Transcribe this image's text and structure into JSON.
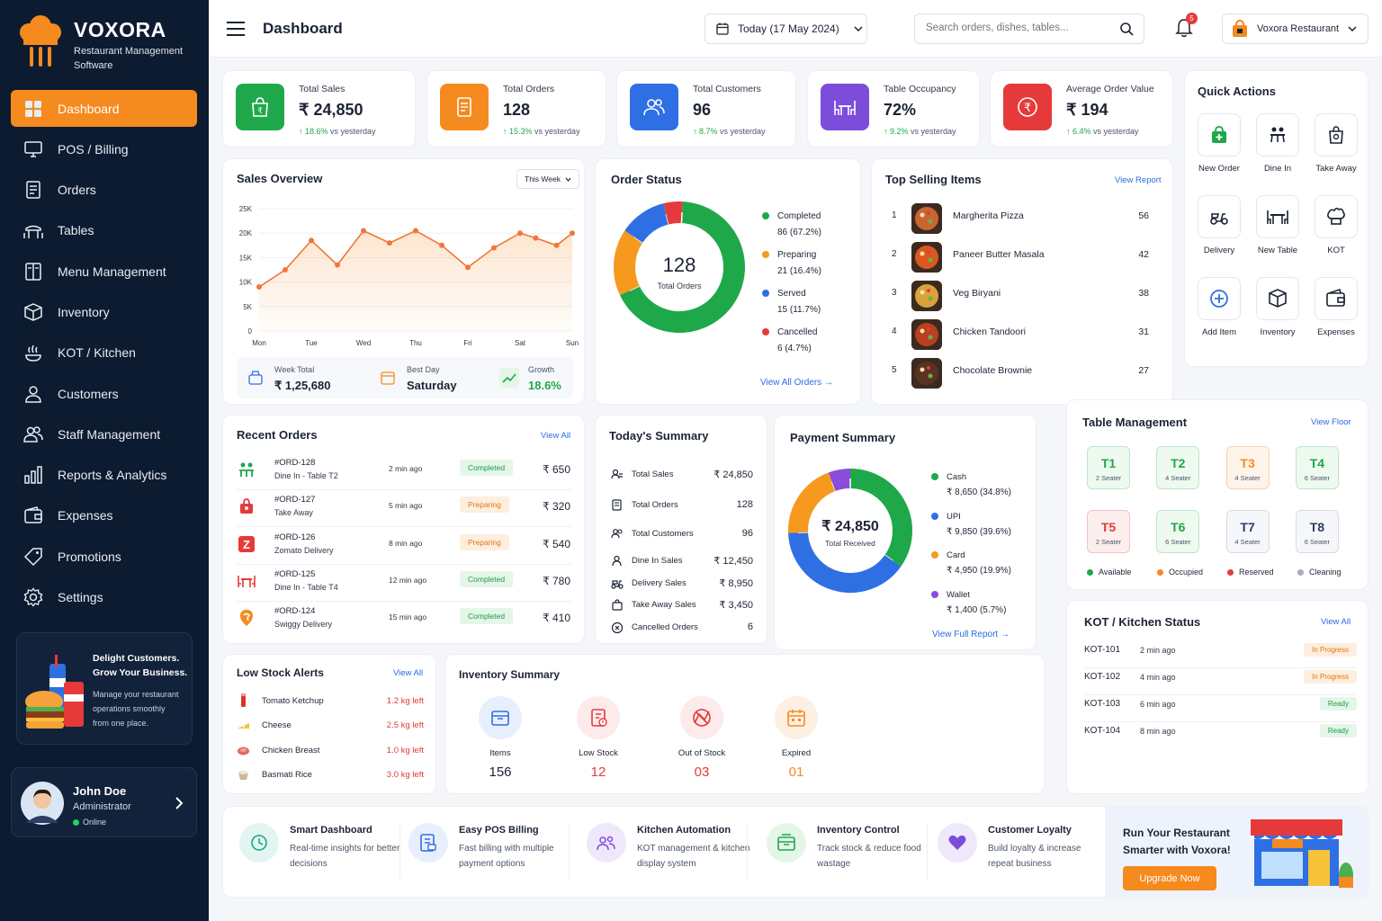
{
  "brand": {
    "name": "VOXORA",
    "sub1": "Restaurant Management",
    "sub2": "Software"
  },
  "nav": [
    {
      "label": "Dashboard",
      "icon": "dashboard-icon"
    },
    {
      "label": "POS / Billing",
      "icon": "pos-icon"
    },
    {
      "label": "Orders",
      "icon": "orders-icon"
    },
    {
      "label": "Tables",
      "icon": "tables-icon"
    },
    {
      "label": "Menu Management",
      "icon": "menu-book-icon"
    },
    {
      "label": "Inventory",
      "icon": "box-icon"
    },
    {
      "label": "KOT / Kitchen",
      "icon": "kitchen-icon"
    },
    {
      "label": "Customers",
      "icon": "customers-icon"
    },
    {
      "label": "Staff Management",
      "icon": "staff-icon"
    },
    {
      "label": "Reports & Analytics",
      "icon": "bar-chart-icon"
    },
    {
      "label": "Expenses",
      "icon": "wallet-icon"
    },
    {
      "label": "Promotions",
      "icon": "tag-icon"
    },
    {
      "label": "Settings",
      "icon": "gear-icon"
    }
  ],
  "promo": {
    "title1": "Delight Customers.",
    "title2": "Grow Your Business.",
    "s1": "Manage your restaurant",
    "s2": "operations smoothly",
    "s3": "from one place."
  },
  "user": {
    "name": "John Doe",
    "role": "Administrator",
    "status": "Online"
  },
  "header": {
    "title": "Dashboard",
    "date": "Today (17 May 2024)",
    "search_placeholder": "Search orders, dishes, tables...",
    "notif": "5",
    "restaurant": "Voxora Restaurant"
  },
  "kpis": [
    {
      "label": "Total Sales",
      "value": "₹ 24,850",
      "trend": "↑ 18.6%",
      "trend_text": "vs yesterday",
      "color": "#1fa84a"
    },
    {
      "label": "Total Orders",
      "value": "128",
      "trend": "↑ 15.3%",
      "trend_text": "vs yesterday",
      "color": "#f58a1f"
    },
    {
      "label": "Total Customers",
      "value": "96",
      "trend": "↑ 8.7%",
      "trend_text": "vs yesterday",
      "color": "#2f6fe4"
    },
    {
      "label": "Table Occupancy",
      "value": "72%",
      "trend": "↑ 9.2%",
      "trend_text": "vs yesterday",
      "color": "#7c4ddb"
    },
    {
      "label": "Average Order Value",
      "value": "₹ 194",
      "trend": "↑ 6.4%",
      "trend_text": "vs yesterday",
      "color": "#e63a3a"
    }
  ],
  "quick": {
    "title": "Quick Actions",
    "items": [
      "New Order",
      "Dine In",
      "Take Away",
      "Delivery",
      "New Table",
      "KOT",
      "Add Item",
      "Inventory",
      "Expenses"
    ]
  },
  "sales": {
    "title": "Sales Overview",
    "range": "This Week",
    "week_total_label": "Week Total",
    "week_total": "₹ 1,25,680",
    "best_day_label": "Best Day",
    "best_day": "Saturday",
    "growth_label": "Growth",
    "growth": "18.6%"
  },
  "chart_data": {
    "type": "area",
    "categories": [
      "Mon",
      "Tue",
      "Wed",
      "Thu",
      "Fri",
      "Sat",
      "Sun"
    ],
    "x": [
      0,
      0.5,
      1,
      1.5,
      2,
      2.5,
      3,
      3.5,
      4,
      4.5,
      5,
      5.3,
      5.7,
      6
    ],
    "values": [
      9000,
      12500,
      18500,
      13500,
      20500,
      18000,
      20500,
      17500,
      13000,
      17000,
      20000,
      19000,
      17500,
      20000
    ],
    "yticks": [
      "0",
      "5K",
      "10K",
      "15K",
      "20K",
      "25K"
    ],
    "ylim": [
      0,
      25000
    ],
    "color": "#f0763a"
  },
  "order_status": {
    "title": "Order Status",
    "total": "128",
    "total_label": "Total Orders",
    "link": "View All Orders",
    "items": [
      {
        "label": "Completed",
        "value": "86",
        "pct": "(67.2%)",
        "color": "#1fa84a",
        "n": 86
      },
      {
        "label": "Preparing",
        "value": "21",
        "pct": "(16.4%)",
        "color": "#f59a1f",
        "n": 21
      },
      {
        "label": "Served",
        "value": "15",
        "pct": "(11.7%)",
        "color": "#2f6fe4",
        "n": 15
      },
      {
        "label": "Cancelled",
        "value": "6",
        "pct": "(4.7%)",
        "color": "#e63a3a",
        "n": 6
      }
    ]
  },
  "top_items": {
    "title": "Top Selling Items",
    "link": "View Report",
    "items": [
      {
        "rank": "1",
        "name": "Margherita Pizza",
        "qty": "56",
        "color": "#c9652f"
      },
      {
        "rank": "2",
        "name": "Paneer Butter Masala",
        "qty": "42",
        "color": "#d9581e"
      },
      {
        "rank": "3",
        "name": "Veg Biryani",
        "qty": "38",
        "color": "#d9a23a"
      },
      {
        "rank": "4",
        "name": "Chicken Tandoori",
        "qty": "31",
        "color": "#b8401e"
      },
      {
        "rank": "5",
        "name": "Chocolate Brownie",
        "qty": "27",
        "color": "#5a3222"
      }
    ]
  },
  "recent": {
    "title": "Recent Orders",
    "link": "View All",
    "items": [
      {
        "id": "#ORD-128",
        "sub": "Dine In - Table T2",
        "time": "2 min ago",
        "status": "Completed",
        "amount": "₹ 650",
        "icon": "dine-in-icon",
        "ic": "#1fa84a"
      },
      {
        "id": "#ORD-127",
        "sub": "Take Away",
        "time": "5 min ago",
        "status": "Preparing",
        "amount": "₹ 320",
        "icon": "takeaway-bag-icon",
        "ic": "#e63a3a"
      },
      {
        "id": "#ORD-126",
        "sub": "Zomato Delivery",
        "time": "8 min ago",
        "status": "Preparing",
        "amount": "₹ 540",
        "icon": "zomato-icon",
        "ic": "#e63a3a"
      },
      {
        "id": "#ORD-125",
        "sub": "Dine In - Table T4",
        "time": "12 min ago",
        "status": "Completed",
        "amount": "₹ 780",
        "icon": "table-icon",
        "ic": "#e63a3a"
      },
      {
        "id": "#ORD-124",
        "sub": "Swiggy Delivery",
        "time": "15 min ago",
        "status": "Completed",
        "amount": "₹ 410",
        "icon": "swiggy-icon",
        "ic": "#f58a1f"
      }
    ]
  },
  "summary": {
    "title": "Today's Summary",
    "items": [
      {
        "label": "Total Sales",
        "value": "₹ 24,850",
        "icon": "sales-icon"
      },
      {
        "label": "Total Orders",
        "value": "128",
        "icon": "orders-icon"
      },
      {
        "label": "Total Customers",
        "value": "96",
        "icon": "customers-icon"
      },
      {
        "label": "Dine In Sales",
        "value": "₹ 12,450",
        "icon": "dine-in-icon"
      },
      {
        "label": "Delivery Sales",
        "value": "₹ 8,950",
        "icon": "scooter-icon"
      },
      {
        "label": "Take Away Sales",
        "value": "₹ 3,450",
        "icon": "takeaway-icon"
      },
      {
        "label": "Cancelled Orders",
        "value": "6",
        "icon": "cancel-icon"
      }
    ]
  },
  "payment": {
    "title": "Payment Summary",
    "total": "₹ 24,850",
    "total_label": "Total Received",
    "link": "View Full Report",
    "items": [
      {
        "label": "Cash",
        "value": "₹ 8,650",
        "pct": "(34.8%)",
        "color": "#1fa84a",
        "n": 34.8
      },
      {
        "label": "UPI",
        "value": "₹ 9,850",
        "pct": "(39.6%)",
        "color": "#2f6fe4",
        "n": 39.6
      },
      {
        "label": "Card",
        "value": "₹ 4,950",
        "pct": "(19.9%)",
        "color": "#f59a1f",
        "n": 19.9
      },
      {
        "label": "Wallet",
        "value": "₹ 1,400",
        "pct": "(5.7%)",
        "color": "#8b4ddb",
        "n": 5.7
      }
    ]
  },
  "tables": {
    "title": "Table Management",
    "link": "View Floor",
    "items": [
      {
        "n": "T1",
        "s": "2 Seater",
        "st": "available"
      },
      {
        "n": "T2",
        "s": "4 Seater",
        "st": "available"
      },
      {
        "n": "T3",
        "s": "4 Seater",
        "st": "occupied"
      },
      {
        "n": "T4",
        "s": "6 Seater",
        "st": "available"
      },
      {
        "n": "T5",
        "s": "2 Seater",
        "st": "reserved"
      },
      {
        "n": "T6",
        "s": "6 Seater",
        "st": "available"
      },
      {
        "n": "T7",
        "s": "4 Seater",
        "st": "cleaning"
      },
      {
        "n": "T8",
        "s": "6 Seater",
        "st": "cleaning"
      }
    ],
    "legend": [
      {
        "label": "Available",
        "color": "#1fa84a"
      },
      {
        "label": "Occupied",
        "color": "#f58a1f"
      },
      {
        "label": "Reserved",
        "color": "#e63a3a"
      },
      {
        "label": "Cleaning",
        "color": "#a3aec0"
      }
    ]
  },
  "kot": {
    "title": "KOT / Kitchen Status",
    "link": "View All",
    "items": [
      {
        "id": "KOT-101",
        "time": "2 min ago",
        "status": "In Progress"
      },
      {
        "id": "KOT-102",
        "time": "4 min ago",
        "status": "In Progress"
      },
      {
        "id": "KOT-103",
        "time": "6 min ago",
        "status": "Ready"
      },
      {
        "id": "KOT-104",
        "time": "8 min ago",
        "status": "Ready"
      }
    ]
  },
  "low_stock": {
    "title": "Low Stock Alerts",
    "link": "View All",
    "items": [
      {
        "name": "Tomato Ketchup",
        "qty": "1.2 kg left",
        "icon": "ketchup-icon",
        "c": "#d7332e"
      },
      {
        "name": "Cheese",
        "qty": "2.5 kg left",
        "icon": "cheese-icon",
        "c": "#f6c23a"
      },
      {
        "name": "Chicken Breast",
        "qty": "1.0 kg left",
        "icon": "chicken-icon",
        "c": "#e4685e"
      },
      {
        "name": "Basmati Rice",
        "qty": "3.0 kg left",
        "icon": "rice-icon",
        "c": "#c9b89a"
      }
    ]
  },
  "inventory": {
    "title": "Inventory Summary",
    "items": [
      {
        "label": "Items",
        "value": "156",
        "color": "#2f6fe4",
        "bg": "#e8effc",
        "vc": "#1c2434"
      },
      {
        "label": "Low Stock",
        "value": "12",
        "color": "#e63a3a",
        "bg": "#fdeaea",
        "vc": "#e63a3a"
      },
      {
        "label": "Out of Stock",
        "value": "03",
        "color": "#e63a3a",
        "bg": "#fdeaea",
        "vc": "#e63a3a"
      },
      {
        "label": "Expired",
        "value": "01",
        "color": "#f58a1f",
        "bg": "#fdf0e2",
        "vc": "#f58a1f"
      }
    ]
  },
  "features": [
    {
      "t": "Smart Dashboard",
      "s": "Real-time insights for better decisions",
      "c": "#1aa58c",
      "bg": "#e3f5f1",
      "icon": "smart-dashboard-icon"
    },
    {
      "t": "Easy POS Billing",
      "s": "Fast billing with multiple payment options",
      "c": "#2f6fe4",
      "bg": "#e8effc",
      "icon": "pos-billing-icon"
    },
    {
      "t": "Kitchen Automation",
      "s": "KOT management & kitchen display system",
      "c": "#7c4ddb",
      "bg": "#efe8fb",
      "icon": "chef-icon"
    },
    {
      "t": "Inventory Control",
      "s": "Track stock & reduce food wastage",
      "c": "#1fa84a",
      "bg": "#e4f6e8",
      "icon": "inventory-box-icon"
    },
    {
      "t": "Customer Loyalty",
      "s": "Build loyalty & increase repeat business",
      "c": "#7c4ddb",
      "bg": "#efe8fb",
      "icon": "heart-icon"
    }
  ],
  "cta": {
    "t1": "Run Your Restaurant",
    "t2": "Smarter with Voxora!",
    "btn": "Upgrade Now"
  }
}
